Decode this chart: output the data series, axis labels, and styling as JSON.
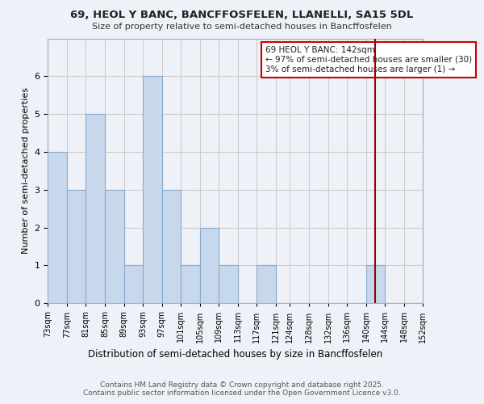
{
  "title": "69, HEOL Y BANC, BANCFFOSFELEN, LLANELLI, SA15 5DL",
  "subtitle": "Size of property relative to semi-detached houses in Bancffosfelen",
  "xlabel": "Distribution of semi-detached houses by size in Bancffosfelen",
  "ylabel": "Number of semi-detached properties",
  "bin_edges": [
    73,
    77,
    81,
    85,
    89,
    93,
    97,
    101,
    105,
    109,
    113,
    117,
    121,
    124,
    128,
    132,
    136,
    140,
    144,
    148,
    152
  ],
  "counts": [
    4,
    3,
    5,
    3,
    1,
    6,
    3,
    1,
    2,
    1,
    0,
    1,
    0,
    0,
    0,
    0,
    0,
    1,
    0,
    0
  ],
  "bar_color": "#c8d8ec",
  "bar_edge_color": "#88aacc",
  "marker_value": 142,
  "marker_color": "#990000",
  "legend_title": "69 HEOL Y BANC: 142sqm",
  "legend_line1": "← 97% of semi-detached houses are smaller (30)",
  "legend_line2": "3% of semi-detached houses are larger (1) →",
  "ylim": [
    0,
    7
  ],
  "yticks": [
    0,
    1,
    2,
    3,
    4,
    5,
    6
  ],
  "footer1": "Contains HM Land Registry data © Crown copyright and database right 2025.",
  "footer2": "Contains public sector information licensed under the Open Government Licence v3.0.",
  "bg_color": "#eef2f8",
  "plot_bg_color": "#eef2f8",
  "grid_color": "#cccccc"
}
